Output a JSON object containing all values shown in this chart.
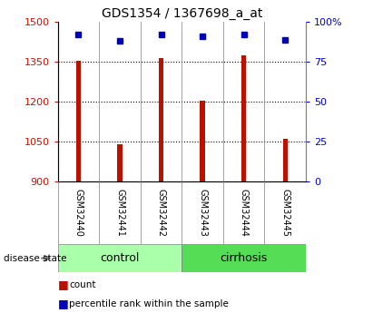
{
  "title": "GDS1354 / 1367698_a_at",
  "samples": [
    "GSM32440",
    "GSM32441",
    "GSM32442",
    "GSM32443",
    "GSM32444",
    "GSM32445"
  ],
  "counts": [
    1355,
    1040,
    1365,
    1205,
    1375,
    1062
  ],
  "percentile_ranks": [
    92,
    88,
    92,
    91,
    92,
    89
  ],
  "y_min": 900,
  "y_max": 1500,
  "y_ticks": [
    900,
    1050,
    1200,
    1350,
    1500
  ],
  "right_y_ticks": [
    0,
    25,
    50,
    75,
    100
  ],
  "right_y_labels": [
    "0",
    "25",
    "50",
    "75",
    "100%"
  ],
  "groups": [
    {
      "name": "control",
      "indices": [
        0,
        1,
        2
      ],
      "color": "#aaffaa"
    },
    {
      "name": "cirrhosis",
      "indices": [
        3,
        4,
        5
      ],
      "color": "#55dd55"
    }
  ],
  "bar_color": "#bb1100",
  "dot_color": "#0000bb",
  "bar_width": 0.12,
  "background_color": "#ffffff",
  "plot_bg_color": "#ffffff",
  "tick_label_bg": "#cccccc",
  "grid_color": "#000000",
  "left_tick_color": "#cc1100",
  "right_tick_color": "#0000cc",
  "legend_red_label": "count",
  "legend_blue_label": "percentile rank within the sample",
  "disease_state_label": "disease state"
}
